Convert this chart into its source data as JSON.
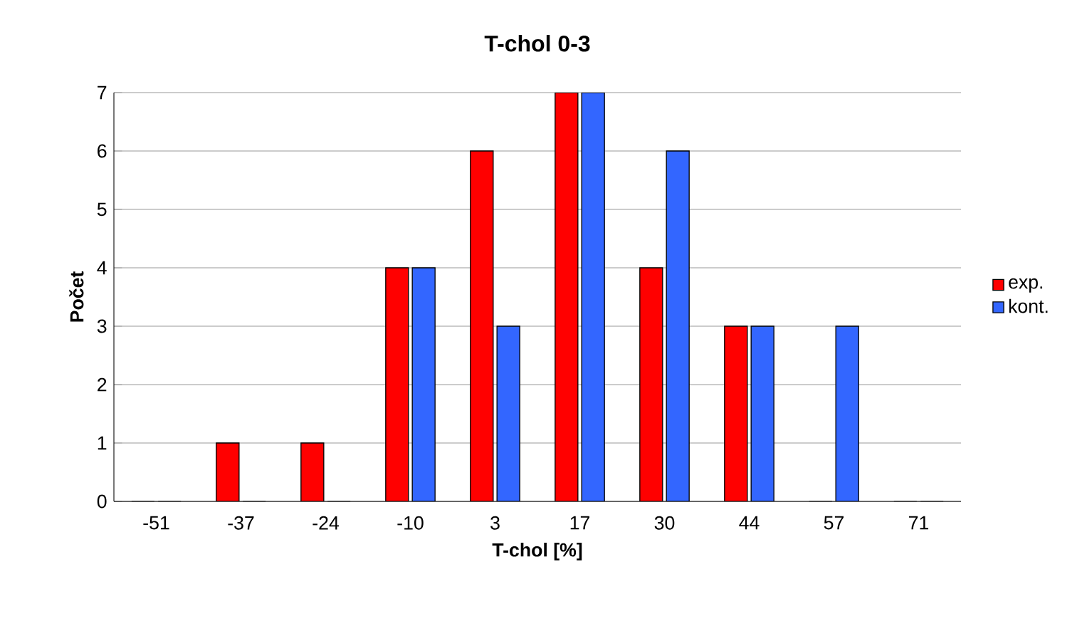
{
  "chart_data": {
    "type": "bar",
    "title": "T-chol 0-3",
    "xlabel": "T-chol [%]",
    "ylabel": "Počet",
    "categories": [
      "-51",
      "-37",
      "-24",
      "-10",
      "3",
      "17",
      "30",
      "44",
      "57",
      "71"
    ],
    "series": [
      {
        "name": "exp.",
        "color": "#ff0000",
        "values": [
          0,
          1,
          1,
          4,
          6,
          7,
          4,
          3,
          0,
          0
        ]
      },
      {
        "name": "kont.",
        "color": "#3366ff",
        "values": [
          0,
          0,
          0,
          4,
          3,
          7,
          6,
          3,
          3,
          0
        ]
      }
    ],
    "ylim": [
      0,
      7
    ],
    "yticks": [
      0,
      1,
      2,
      3,
      4,
      5,
      6,
      7
    ],
    "grid": "y",
    "legend": "right"
  }
}
